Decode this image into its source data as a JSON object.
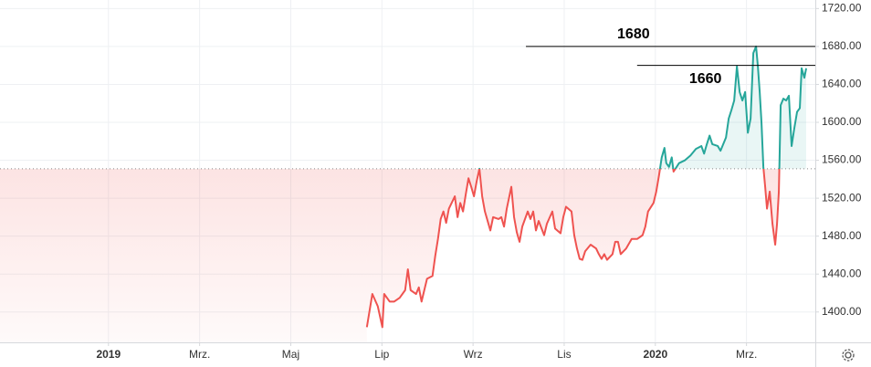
{
  "chart_data": {
    "type": "baseline-line",
    "x": [
      5.67,
      5.79,
      5.91,
      6.01,
      6.05,
      6.17,
      6.27,
      6.39,
      6.51,
      6.57,
      6.63,
      6.75,
      6.81,
      6.87,
      6.99,
      7.11,
      7.17,
      7.23,
      7.29,
      7.35,
      7.41,
      7.47,
      7.6,
      7.66,
      7.72,
      7.78,
      7.84,
      7.9,
      7.96,
      8.02,
      8.08,
      8.14,
      8.2,
      8.26,
      8.38,
      8.44,
      8.56,
      8.62,
      8.68,
      8.74,
      8.84,
      8.9,
      8.96,
      9.02,
      9.08,
      9.2,
      9.26,
      9.32,
      9.38,
      9.44,
      9.56,
      9.62,
      9.74,
      9.8,
      9.92,
      9.98,
      10.04,
      10.16,
      10.22,
      10.28,
      10.34,
      10.4,
      10.46,
      10.58,
      10.7,
      10.76,
      10.82,
      10.88,
      10.94,
      11.06,
      11.12,
      11.18,
      11.24,
      11.36,
      11.48,
      11.6,
      11.72,
      11.78,
      11.84,
      11.96,
      12.02,
      12.08,
      12.14,
      12.2,
      12.24,
      12.3,
      12.36,
      12.4,
      12.52,
      12.65,
      12.77,
      12.89,
      13.01,
      13.07,
      13.13,
      13.19,
      13.25,
      13.37,
      13.43,
      13.55,
      13.61,
      13.67,
      13.73,
      13.79,
      13.85,
      13.91,
      13.97,
      14.03,
      14.09,
      14.15,
      14.21,
      14.25,
      14.29,
      14.33,
      14.37,
      14.41,
      14.45,
      14.51,
      14.57,
      14.63,
      14.67,
      14.71,
      14.75,
      14.81,
      14.87,
      14.93,
      14.99,
      15.05,
      15.11,
      15.17,
      15.21,
      15.27,
      15.31
    ],
    "values": [
      1384,
      1419,
      1406,
      1384,
      1419,
      1411,
      1411,
      1415,
      1423,
      1445,
      1423,
      1419,
      1426,
      1411,
      1435,
      1438,
      1459,
      1477,
      1498,
      1506,
      1494,
      1509,
      1522,
      1500,
      1515,
      1506,
      1524,
      1541,
      1532,
      1522,
      1538,
      1551,
      1522,
      1506,
      1486,
      1500,
      1498,
      1500,
      1490,
      1509,
      1532,
      1500,
      1484,
      1474,
      1490,
      1506,
      1498,
      1506,
      1486,
      1496,
      1481,
      1493,
      1506,
      1488,
      1483,
      1500,
      1511,
      1506,
      1481,
      1467,
      1456,
      1455,
      1464,
      1471,
      1467,
      1461,
      1456,
      1461,
      1455,
      1461,
      1474,
      1474,
      1461,
      1467,
      1477,
      1477,
      1481,
      1490,
      1506,
      1515,
      1527,
      1544,
      1563,
      1573,
      1557,
      1553,
      1563,
      1548,
      1557,
      1560,
      1565,
      1572,
      1575,
      1567,
      1577,
      1586,
      1577,
      1575,
      1570,
      1584,
      1604,
      1613,
      1623,
      1659,
      1632,
      1623,
      1632,
      1589,
      1604,
      1673,
      1680,
      1659,
      1632,
      1599,
      1553,
      1532,
      1509,
      1527,
      1493,
      1471,
      1493,
      1527,
      1618,
      1625,
      1623,
      1628,
      1575,
      1594,
      1611,
      1615,
      1657,
      1647,
      1657
    ],
    "baseline": 1551,
    "up_color": "#26a69a",
    "down_color": "#ef5350",
    "xlim": [
      -2.38,
      15.51
    ],
    "xticks": [
      {
        "value": 0,
        "label": "2019"
      },
      {
        "value": 2,
        "label": "Mrz."
      },
      {
        "value": 4,
        "label": "Maj"
      },
      {
        "value": 6,
        "label": "Lip"
      },
      {
        "value": 8,
        "label": "Wrz"
      },
      {
        "value": 10,
        "label": "Lis"
      },
      {
        "value": 12,
        "label": "2020"
      },
      {
        "value": 14,
        "label": "Mrz."
      }
    ],
    "ylim": [
      1368,
      1729
    ],
    "yticks": [
      {
        "value": 1400,
        "label": "1400.00"
      },
      {
        "value": 1440,
        "label": "1440.00"
      },
      {
        "value": 1480,
        "label": "1480.00"
      },
      {
        "value": 1520,
        "label": "1520.00"
      },
      {
        "value": 1560,
        "label": "1560.00"
      },
      {
        "value": 1600,
        "label": "1600.00"
      },
      {
        "value": 1640,
        "label": "1640.00"
      },
      {
        "value": 1680,
        "label": "1680.00"
      },
      {
        "value": 1720,
        "label": "1720.00"
      }
    ],
    "grid": true,
    "annotations": [
      {
        "value": 1680,
        "x0": 9.16
      },
      {
        "value": 1660,
        "x0": 11.6
      }
    ]
  }
}
